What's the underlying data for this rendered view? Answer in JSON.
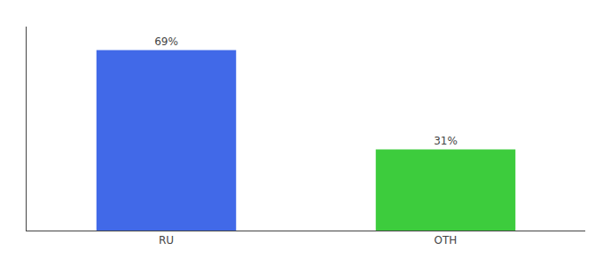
{
  "chart_data": {
    "type": "bar",
    "categories": [
      "RU",
      "OTH"
    ],
    "values": [
      69,
      31
    ],
    "value_labels": [
      "69%",
      "31%"
    ],
    "data_labels": true,
    "colors": [
      "#4169e8",
      "#3dcc3d"
    ],
    "ylim": [
      0,
      78
    ],
    "tick_labels": "x",
    "grid": false
  }
}
